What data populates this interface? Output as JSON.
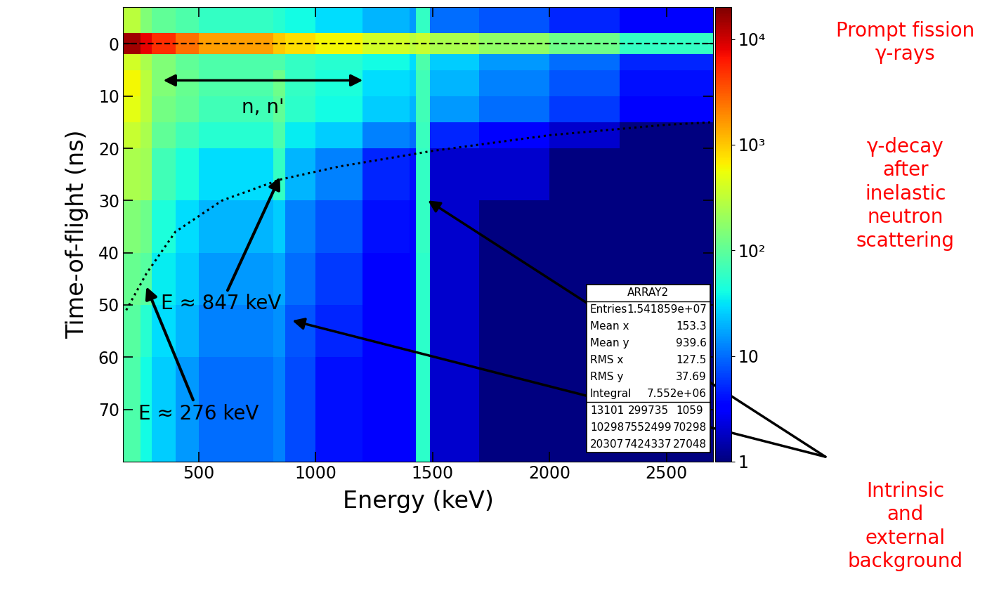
{
  "chart_data": {
    "type": "heatmap",
    "x_label": "Energy (keV)",
    "y_label": "Time-of-flight (ns)",
    "xlim": [
      175,
      2700
    ],
    "xticks": [
      500,
      1000,
      1500,
      2000,
      2500
    ],
    "ylim": [
      80,
      -7
    ],
    "yticks": [
      0,
      10,
      20,
      30,
      40,
      50,
      60,
      70
    ],
    "grid": false,
    "x_bins": [
      175,
      250,
      300,
      400,
      500,
      820,
      870,
      1000,
      1200,
      1400,
      1430,
      1490,
      1700,
      2000,
      2300,
      2700
    ],
    "y_bins": [
      -7,
      -2,
      2,
      5,
      10,
      15,
      20,
      30,
      40,
      50,
      60,
      80
    ],
    "cells": [
      [
        300,
        150,
        100,
        80,
        60,
        50,
        40,
        30,
        20,
        15,
        60,
        10,
        8,
        5,
        3
      ],
      [
        15000,
        8000,
        5000,
        2500,
        1500,
        1000,
        800,
        600,
        400,
        300,
        350,
        250,
        180,
        120,
        60
      ],
      [
        400,
        250,
        150,
        100,
        80,
        80,
        60,
        50,
        40,
        30,
        80,
        25,
        15,
        10,
        5
      ],
      [
        600,
        300,
        150,
        110,
        80,
        120,
        60,
        45,
        30,
        25,
        70,
        20,
        12,
        8,
        4
      ],
      [
        500,
        300,
        130,
        100,
        70,
        100,
        55,
        40,
        25,
        20,
        70,
        15,
        10,
        6,
        3
      ],
      [
        350,
        250,
        100,
        70,
        50,
        80,
        35,
        25,
        12,
        10,
        65,
        5,
        3,
        2,
        1
      ],
      [
        250,
        220,
        70,
        45,
        30,
        60,
        20,
        12,
        5,
        4,
        60,
        2,
        2,
        1,
        1
      ],
      [
        150,
        120,
        45,
        30,
        20,
        25,
        12,
        8,
        4,
        3,
        60,
        2,
        1,
        1,
        1
      ],
      [
        110,
        90,
        35,
        25,
        15,
        18,
        10,
        6,
        3,
        3,
        55,
        2,
        1,
        1,
        1
      ],
      [
        90,
        50,
        30,
        20,
        12,
        14,
        8,
        5,
        3,
        3,
        55,
        2,
        1,
        1,
        1
      ],
      [
        80,
        40,
        25,
        15,
        10,
        12,
        7,
        4,
        3,
        3,
        55,
        2,
        1,
        1,
        1
      ]
    ],
    "colorbar": {
      "range": [
        1,
        20000
      ],
      "log": true,
      "ticks": [
        1,
        10,
        {
          "value": 100,
          "label": "10²"
        },
        {
          "value": 1000,
          "label": "10³"
        },
        {
          "value": 10000,
          "label": "10⁴"
        }
      ]
    },
    "prompt_line": {
      "y": 0,
      "line_style": "dashed"
    },
    "curve": {
      "x": [
        190,
        276,
        400,
        600,
        847,
        1100,
        1500,
        2000,
        2500,
        2700
      ],
      "y": [
        51,
        44,
        36,
        30,
        26,
        23.5,
        20.5,
        17.5,
        15.5,
        15
      ],
      "line_style": "dotted"
    },
    "annotations": [
      {
        "text": "n, n'",
        "span": [
          340,
          1210
        ],
        "y": 7
      },
      {
        "text": "E ≈ 847 keV",
        "target": [
          847,
          25.5
        ]
      },
      {
        "text": "E ≈ 276 keV",
        "target": [
          276,
          46.5
        ]
      }
    ],
    "side_labels": [
      {
        "text": "Prompt fission\nγ-rays",
        "color": "red"
      },
      {
        "text": "γ-decay\nafter\ninelastic\nneutron\nscattering",
        "color": "red"
      },
      {
        "text": "Intrinsic\nand\nexternal\nbackground",
        "color": "red",
        "targets": [
          [
            1480,
            30
          ],
          [
            900,
            53
          ]
        ]
      }
    ],
    "stats_box": {
      "title": "ARRAY2",
      "rows": [
        [
          "Entries",
          {
            "value": 15418590,
            "label": "1.541859e+07"
          }
        ],
        [
          "Mean x",
          153.3
        ],
        [
          "Mean y",
          939.6
        ],
        [
          "RMS x",
          127.5
        ],
        [
          "RMS y",
          37.69
        ],
        [
          "Integral",
          {
            "value": 7552000,
            "label": "7.552e+06"
          }
        ]
      ],
      "table": [
        [
          13101,
          299735,
          1059
        ],
        [
          10298,
          7552499,
          70298
        ],
        [
          20307,
          7424337,
          27048
        ]
      ]
    }
  }
}
